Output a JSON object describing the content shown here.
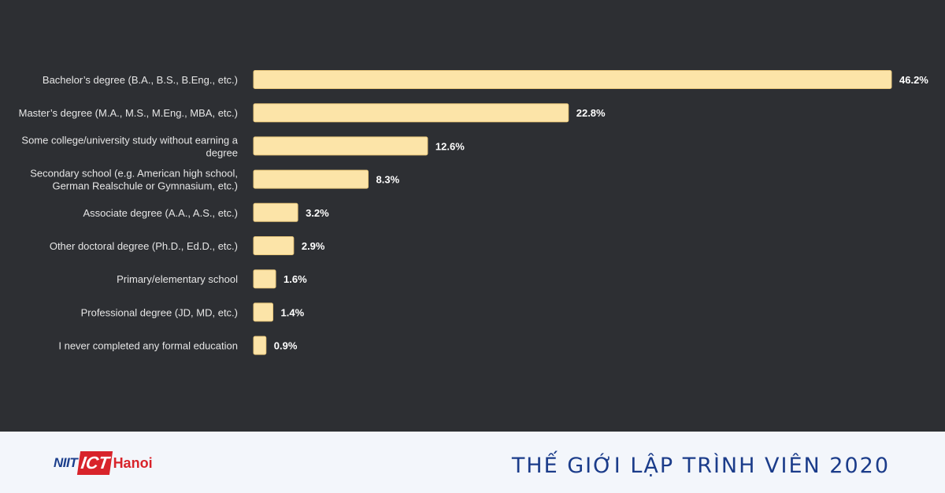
{
  "chart_data": {
    "type": "bar",
    "orientation": "horizontal",
    "categories": [
      [
        "Bachelor’s degree (B.A., B.S., B.Eng., etc.)"
      ],
      [
        "Master’s degree (M.A., M.S., M.Eng., MBA, etc.)"
      ],
      [
        "Some college/university study without earning a",
        "degree"
      ],
      [
        "Secondary school (e.g. American high school,",
        "German Realschule or Gymnasium, etc.)"
      ],
      [
        "Associate degree (A.A., A.S., etc.)"
      ],
      [
        "Other doctoral degree (Ph.D., Ed.D., etc.)"
      ],
      [
        "Primary/elementary school"
      ],
      [
        "Professional degree (JD, MD, etc.)"
      ],
      [
        "I never completed any formal education"
      ]
    ],
    "values": [
      46.2,
      22.8,
      12.6,
      8.3,
      3.2,
      2.9,
      1.6,
      1.4,
      0.9
    ],
    "value_labels": [
      "46.2%",
      "22.8%",
      "12.6%",
      "8.3%",
      "3.2%",
      "2.9%",
      "1.6%",
      "1.4%",
      "0.9%"
    ],
    "bar_color": "#fce4a8",
    "bar_edge_color": "#e8c77c",
    "background": "#2d2f33",
    "grid": false,
    "legend": "none"
  },
  "footer": {
    "logo": {
      "niit": "NIIT",
      "ict": "ICT",
      "hanoi": "Hanoi"
    },
    "title": "THẾ GIỚI LẬP TRÌNH VIÊN 2020"
  }
}
